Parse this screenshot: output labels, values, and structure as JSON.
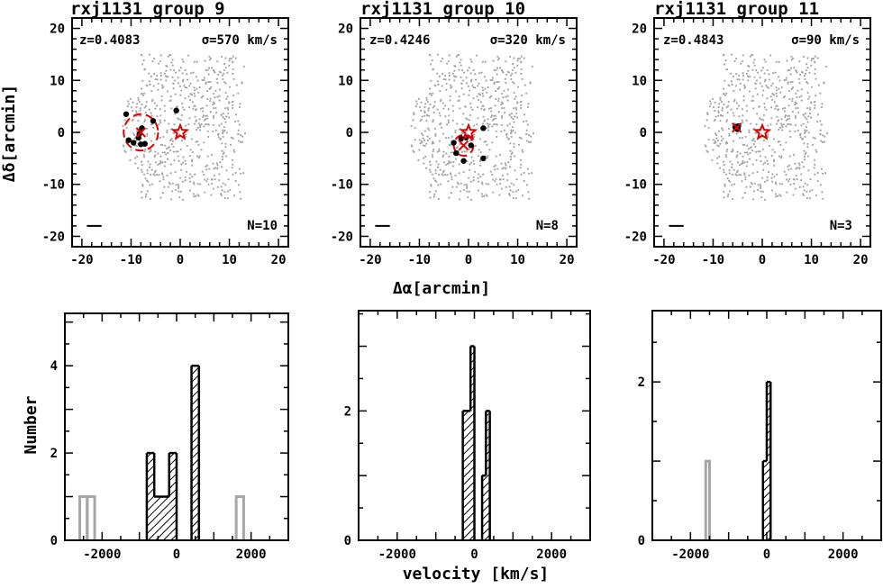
{
  "figure": {
    "sky_xlabel": "Δα[arcmin]",
    "sky_ylabel": "Δδ[arcmin]",
    "hist_xlabel": "velocity [km/s]",
    "hist_ylabel": "Number",
    "colors": {
      "field": "#a6a6a6",
      "member": "#000000",
      "highlight": "#e00000",
      "outside_bar": "#a6a6a6",
      "hatched_bar": "#000000"
    }
  },
  "chart_data": [
    {
      "type": "scatter",
      "title": "rxj1131 group 9",
      "z_label": "z=0.4083",
      "sigma_label": "σ=570 km/s",
      "n_label": "N=10",
      "xlim": [
        -22,
        22
      ],
      "ylim": [
        -22,
        22
      ],
      "xticks": [
        -20,
        -10,
        0,
        10,
        20
      ],
      "yticks": [
        -20,
        -10,
        0,
        10,
        20
      ],
      "members": [
        [
          -11,
          3.5
        ],
        [
          -5.5,
          2.2
        ],
        [
          -0.8,
          4.2
        ],
        [
          -10.5,
          -1.5
        ],
        [
          -9.5,
          -2.0
        ],
        [
          -8.5,
          -1.0
        ],
        [
          -8.0,
          -2.3
        ],
        [
          -7.2,
          -2.2
        ],
        [
          -8.3,
          -0.3
        ],
        [
          -7.8,
          0.8
        ]
      ],
      "group_center": [
        -8,
        0
      ],
      "circle_radius": 3.5,
      "bcg_star": [
        0,
        0
      ]
    },
    {
      "type": "scatter",
      "title": "rxj1131 group 10",
      "z_label": "z=0.4246",
      "sigma_label": "σ=320 km/s",
      "n_label": "N=8",
      "xlim": [
        -22,
        22
      ],
      "ylim": [
        -22,
        22
      ],
      "xticks": [
        -20,
        -10,
        0,
        10,
        20
      ],
      "yticks": [
        -20,
        -10,
        0,
        10,
        20
      ],
      "members": [
        [
          -3,
          -2
        ],
        [
          -2.5,
          -4
        ],
        [
          -1.5,
          -1.2
        ],
        [
          -0.5,
          -1.0
        ],
        [
          0.5,
          -2.5
        ],
        [
          -1.0,
          -5.5
        ],
        [
          3,
          0.8
        ],
        [
          3,
          -5
        ]
      ],
      "group_center": [
        -1,
        -2.5
      ],
      "circle_radius": 2,
      "bcg_star": [
        0,
        0
      ]
    },
    {
      "type": "scatter",
      "title": "rxj1131 group 11",
      "z_label": "z=0.4843",
      "sigma_label": "σ=90 km/s",
      "n_label": "N=3",
      "xlim": [
        -22,
        22
      ],
      "ylim": [
        -22,
        22
      ],
      "xticks": [
        -20,
        -10,
        0,
        10,
        20
      ],
      "yticks": [
        -20,
        -10,
        0,
        10,
        20
      ],
      "members": [
        [
          -5.5,
          1.0
        ],
        [
          -5.0,
          0.6
        ],
        [
          -4.9,
          1.2
        ]
      ],
      "group_center": [
        -5.2,
        0.9
      ],
      "circle_radius": 0.6,
      "bcg_star": [
        0,
        0
      ]
    },
    {
      "type": "bar",
      "bin_width": 200,
      "xlim": [
        -3000,
        3000
      ],
      "ylim": [
        0,
        5.2
      ],
      "xticks": [
        -2000,
        0,
        2000
      ],
      "yticks": [
        0,
        2,
        4
      ],
      "hatched_bins": [
        [
          -800,
          2
        ],
        [
          -600,
          1
        ],
        [
          -400,
          1
        ],
        [
          -200,
          2
        ],
        [
          400,
          4
        ]
      ],
      "outside_bins": [
        [
          -2600,
          1
        ],
        [
          -2400,
          1
        ],
        [
          1600,
          1
        ]
      ]
    },
    {
      "type": "bar",
      "bin_width": 100,
      "xlim": [
        -3000,
        3000
      ],
      "ylim": [
        0,
        3.55
      ],
      "xticks": [
        -2000,
        0,
        2000
      ],
      "yticks": [
        0,
        2
      ],
      "hatched_bins": [
        [
          -300,
          2
        ],
        [
          -200,
          2
        ],
        [
          -100,
          3
        ],
        [
          200,
          1
        ],
        [
          300,
          2
        ]
      ],
      "outside_bins": []
    },
    {
      "type": "bar",
      "bin_width": 100,
      "xlim": [
        -3000,
        3000
      ],
      "ylim": [
        0,
        2.9
      ],
      "xticks": [
        -2000,
        0,
        2000
      ],
      "yticks": [
        0,
        2
      ],
      "hatched_bins": [
        [
          -100,
          1
        ],
        [
          0,
          2
        ]
      ],
      "outside_bins": [
        [
          -1600,
          1
        ]
      ]
    }
  ]
}
